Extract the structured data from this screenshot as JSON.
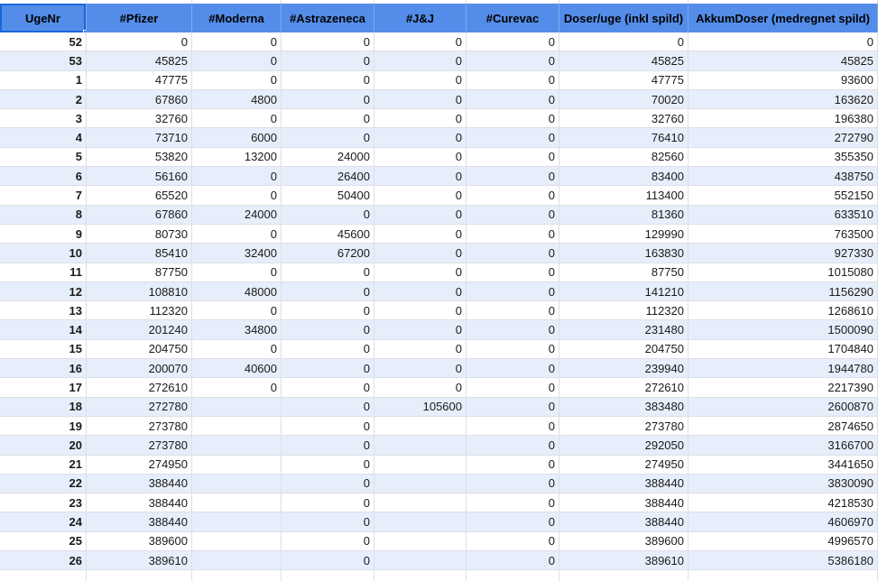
{
  "sheet": {
    "columns": [
      "UgeNr",
      "#Pfizer",
      "#Moderna",
      "#Astrazeneca",
      "#J&J",
      "#Curevac",
      "Doser/uge (inkl spild)",
      "AkkumDoser (medregnet spild)"
    ],
    "selected_cell": "UgeNr",
    "rows": [
      [
        "52",
        "0",
        "0",
        "0",
        "0",
        "0",
        "0",
        "0"
      ],
      [
        "53",
        "45825",
        "0",
        "0",
        "0",
        "0",
        "45825",
        "45825"
      ],
      [
        "1",
        "47775",
        "0",
        "0",
        "0",
        "0",
        "47775",
        "93600"
      ],
      [
        "2",
        "67860",
        "4800",
        "0",
        "0",
        "0",
        "70020",
        "163620"
      ],
      [
        "3",
        "32760",
        "0",
        "0",
        "0",
        "0",
        "32760",
        "196380"
      ],
      [
        "4",
        "73710",
        "6000",
        "0",
        "0",
        "0",
        "76410",
        "272790"
      ],
      [
        "5",
        "53820",
        "13200",
        "24000",
        "0",
        "0",
        "82560",
        "355350"
      ],
      [
        "6",
        "56160",
        "0",
        "26400",
        "0",
        "0",
        "83400",
        "438750"
      ],
      [
        "7",
        "65520",
        "0",
        "50400",
        "0",
        "0",
        "113400",
        "552150"
      ],
      [
        "8",
        "67860",
        "24000",
        "0",
        "0",
        "0",
        "81360",
        "633510"
      ],
      [
        "9",
        "80730",
        "0",
        "45600",
        "0",
        "0",
        "129990",
        "763500"
      ],
      [
        "10",
        "85410",
        "32400",
        "67200",
        "0",
        "0",
        "163830",
        "927330"
      ],
      [
        "11",
        "87750",
        "0",
        "0",
        "0",
        "0",
        "87750",
        "1015080"
      ],
      [
        "12",
        "108810",
        "48000",
        "0",
        "0",
        "0",
        "141210",
        "1156290"
      ],
      [
        "13",
        "112320",
        "0",
        "0",
        "0",
        "0",
        "112320",
        "1268610"
      ],
      [
        "14",
        "201240",
        "34800",
        "0",
        "0",
        "0",
        "231480",
        "1500090"
      ],
      [
        "15",
        "204750",
        "0",
        "0",
        "0",
        "0",
        "204750",
        "1704840"
      ],
      [
        "16",
        "200070",
        "40600",
        "0",
        "0",
        "0",
        "239940",
        "1944780"
      ],
      [
        "17",
        "272610",
        "0",
        "0",
        "0",
        "0",
        "272610",
        "2217390"
      ],
      [
        "18",
        "272780",
        "",
        "0",
        "105600",
        "0",
        "383480",
        "2600870"
      ],
      [
        "19",
        "273780",
        "",
        "0",
        "",
        "0",
        "273780",
        "2874650"
      ],
      [
        "20",
        "273780",
        "",
        "0",
        "",
        "0",
        "292050",
        "3166700"
      ],
      [
        "21",
        "274950",
        "",
        "0",
        "",
        "0",
        "274950",
        "3441650"
      ],
      [
        "22",
        "388440",
        "",
        "0",
        "",
        "0",
        "388440",
        "3830090"
      ],
      [
        "23",
        "388440",
        "",
        "0",
        "",
        "0",
        "388440",
        "4218530"
      ],
      [
        "24",
        "388440",
        "",
        "0",
        "",
        "0",
        "388440",
        "4606970"
      ],
      [
        "25",
        "389600",
        "",
        "0",
        "",
        "0",
        "389600",
        "4996570"
      ],
      [
        "26",
        "389610",
        "",
        "0",
        "",
        "0",
        "389610",
        "5386180"
      ]
    ],
    "colors": {
      "header_bg": "#548de9",
      "band_bg": "#e7eefb",
      "gridline": "#dcdfe6",
      "selection_border": "#1a66d9",
      "fill_handle": "#1a73e8"
    }
  }
}
